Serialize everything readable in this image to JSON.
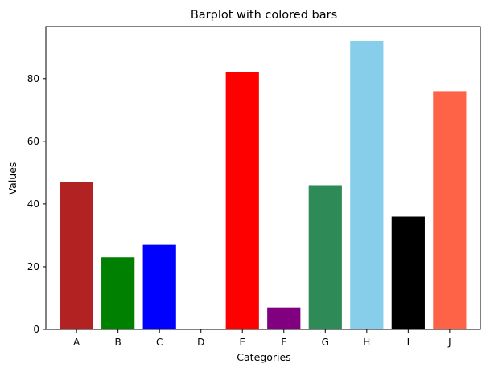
{
  "chart_data": {
    "type": "bar",
    "title": "Barplot with colored bars",
    "xlabel": "Categories",
    "ylabel": "Values",
    "categories": [
      "A",
      "B",
      "C",
      "D",
      "E",
      "F",
      "G",
      "H",
      "I",
      "J"
    ],
    "values": [
      47,
      23,
      27,
      0,
      82,
      7,
      46,
      92,
      36,
      76
    ],
    "colors": [
      "#b22222",
      "#008000",
      "#0000ff",
      "#ffffff",
      "#ff0000",
      "#800080",
      "#2e8b57",
      "#87ceeb",
      "#000000",
      "#ff6347"
    ],
    "ylim": [
      0,
      96.6
    ],
    "yticks": [
      0,
      20,
      40,
      60,
      80
    ],
    "grid": false,
    "legend": false
  }
}
